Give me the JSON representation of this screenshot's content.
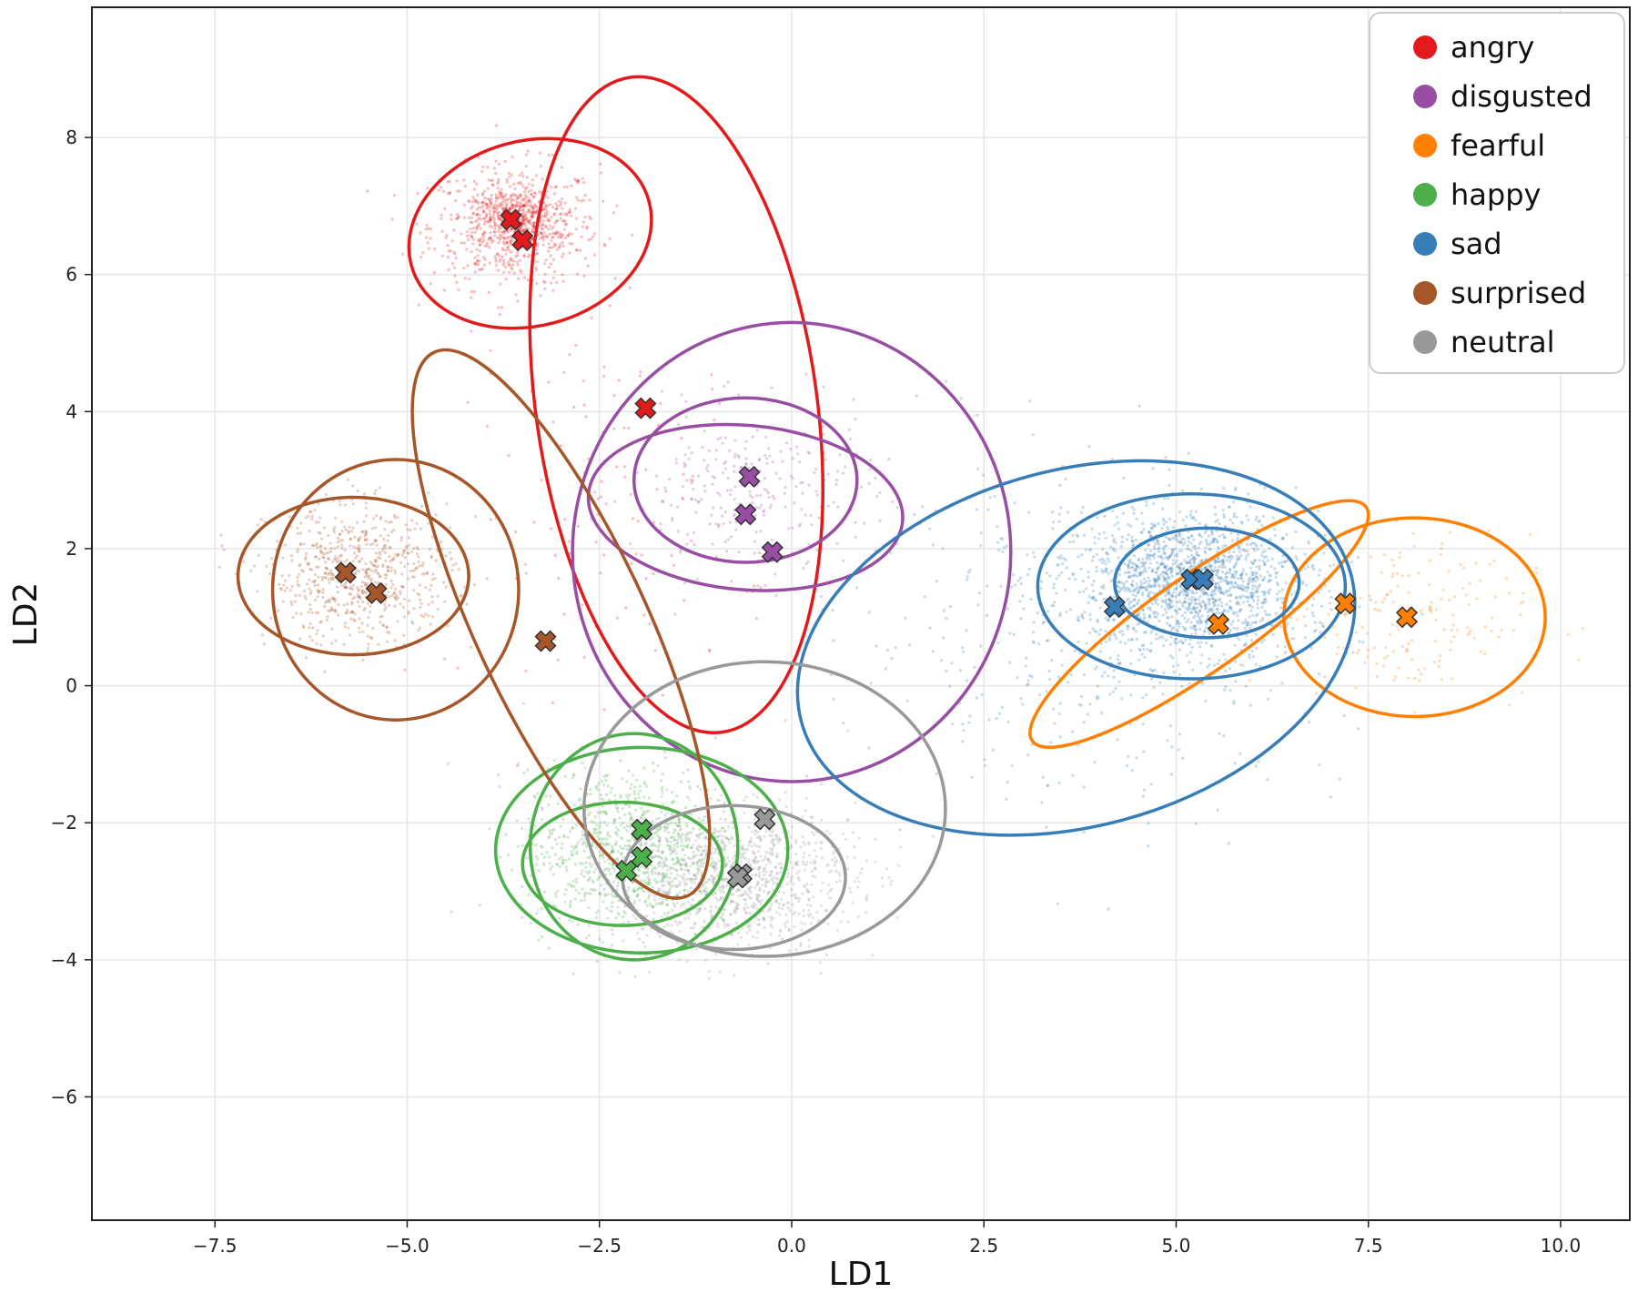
{
  "chart_data": {
    "type": "scatter",
    "title": "",
    "xlabel": "LD1",
    "ylabel": "LD2",
    "xlim": [
      -9.1,
      10.9
    ],
    "ylim": [
      -7.8,
      9.9
    ],
    "grid": true,
    "legend_position": "top-right",
    "x_ticks": [
      -7.5,
      -5.0,
      -2.5,
      0.0,
      2.5,
      5.0,
      7.5,
      10.0
    ],
    "x_tick_labels": [
      "−7.5",
      "−5.0",
      "−2.5",
      "0.0",
      "2.5",
      "5.0",
      "7.5",
      "10.0"
    ],
    "y_ticks": [
      -6,
      -4,
      -2,
      0,
      2,
      4,
      6,
      8
    ],
    "y_tick_labels": [
      "−6",
      "−4",
      "−2",
      "0",
      "2",
      "4",
      "6",
      "8"
    ],
    "series": [
      {
        "name": "angry",
        "color": "#e31a1c",
        "centroids": [
          [
            -3.65,
            6.8
          ],
          [
            -3.5,
            6.5
          ],
          [
            -1.9,
            4.05
          ]
        ],
        "ellipses": [
          {
            "cx": -3.4,
            "cy": 6.6,
            "rx": 1.6,
            "ry": 1.35,
            "angle": 15
          },
          {
            "cx": -1.5,
            "cy": 4.1,
            "rx": 4.3,
            "ry": 2.05,
            "angle": -82
          }
        ],
        "clusters": [
          {
            "cx": -3.6,
            "cy": 6.7,
            "sx": 0.55,
            "sy": 0.45,
            "n": 650
          },
          {
            "cx": -3.6,
            "cy": 6.8,
            "sx": 0.25,
            "sy": 0.2,
            "n": 350
          },
          {
            "cx": -2.2,
            "cy": 2.5,
            "sx": 1.0,
            "sy": 1.3,
            "n": 120
          }
        ]
      },
      {
        "name": "disgusted",
        "color": "#984ea3",
        "centroids": [
          [
            -0.55,
            3.05
          ],
          [
            -0.6,
            2.5
          ],
          [
            -0.25,
            1.95
          ]
        ],
        "ellipses": [
          {
            "cx": -0.6,
            "cy": 3.0,
            "rx": 1.45,
            "ry": 1.2,
            "angle": 0
          },
          {
            "cx": -0.6,
            "cy": 2.6,
            "rx": 2.05,
            "ry": 1.2,
            "angle": -5
          },
          {
            "cx": 0.0,
            "cy": 1.95,
            "rx": 2.85,
            "ry": 3.35,
            "angle": 0
          }
        ],
        "clusters": [
          {
            "cx": -0.5,
            "cy": 2.8,
            "sx": 0.8,
            "sy": 0.6,
            "n": 280
          }
        ]
      },
      {
        "name": "fearful",
        "color": "#ff7f00",
        "centroids": [
          [
            7.2,
            1.2
          ],
          [
            8.0,
            1.0
          ],
          [
            5.55,
            0.9
          ]
        ],
        "ellipses": [
          {
            "cx": 8.1,
            "cy": 1.0,
            "rx": 1.7,
            "ry": 1.45,
            "angle": 0
          },
          {
            "cx": 5.3,
            "cy": 0.9,
            "rx": 2.65,
            "ry": 0.7,
            "angle": 35
          }
        ],
        "clusters": [
          {
            "cx": 8.0,
            "cy": 1.0,
            "sx": 0.8,
            "sy": 0.6,
            "n": 180
          }
        ]
      },
      {
        "name": "happy",
        "color": "#4daf4a",
        "centroids": [
          [
            -1.95,
            -2.1
          ],
          [
            -1.95,
            -2.5
          ],
          [
            -2.15,
            -2.7
          ]
        ],
        "ellipses": [
          {
            "cx": -2.2,
            "cy": -2.6,
            "rx": 1.3,
            "ry": 0.9,
            "angle": 0
          },
          {
            "cx": -2.05,
            "cy": -2.35,
            "rx": 1.35,
            "ry": 1.65,
            "angle": 0
          },
          {
            "cx": -1.95,
            "cy": -2.4,
            "rx": 1.9,
            "ry": 1.5,
            "angle": 0
          }
        ],
        "clusters": [
          {
            "cx": -2.1,
            "cy": -2.4,
            "sx": 0.7,
            "sy": 0.6,
            "n": 900
          }
        ]
      },
      {
        "name": "sad",
        "color": "#377eb8",
        "centroids": [
          [
            5.2,
            1.55
          ],
          [
            5.35,
            1.55
          ],
          [
            4.2,
            1.15
          ]
        ],
        "ellipses": [
          {
            "cx": 5.4,
            "cy": 1.5,
            "rx": 1.2,
            "ry": 0.8,
            "angle": 0
          },
          {
            "cx": 5.2,
            "cy": 1.45,
            "rx": 2.0,
            "ry": 1.35,
            "angle": 0
          },
          {
            "cx": 3.7,
            "cy": 0.55,
            "rx": 3.7,
            "ry": 2.6,
            "angle": 15
          }
        ],
        "clusters": [
          {
            "cx": 5.2,
            "cy": 1.5,
            "sx": 0.7,
            "sy": 0.5,
            "n": 1500
          },
          {
            "cx": 4.0,
            "cy": 0.8,
            "sx": 1.6,
            "sy": 1.2,
            "n": 500
          }
        ]
      },
      {
        "name": "surprised",
        "color": "#a65628",
        "centroids": [
          [
            -5.8,
            1.65
          ],
          [
            -5.4,
            1.35
          ],
          [
            -3.2,
            0.65
          ]
        ],
        "ellipses": [
          {
            "cx": -5.7,
            "cy": 1.6,
            "rx": 1.5,
            "ry": 1.15,
            "angle": 0
          },
          {
            "cx": -5.15,
            "cy": 1.4,
            "rx": 1.6,
            "ry": 1.9,
            "angle": 0
          },
          {
            "cx": -3.0,
            "cy": 0.9,
            "rx": 3.9,
            "ry": 1.25,
            "angle": -65
          }
        ],
        "clusters": [
          {
            "cx": -5.6,
            "cy": 1.6,
            "sx": 0.6,
            "sy": 0.5,
            "n": 700
          }
        ]
      },
      {
        "name": "neutral",
        "color": "#999999",
        "centroids": [
          [
            -0.65,
            -2.75
          ],
          [
            -0.7,
            -2.8
          ],
          [
            -0.35,
            -1.95
          ]
        ],
        "ellipses": [
          {
            "cx": -0.75,
            "cy": -2.8,
            "rx": 1.45,
            "ry": 1.05,
            "angle": 0
          },
          {
            "cx": -0.35,
            "cy": -1.8,
            "rx": 2.35,
            "ry": 2.15,
            "angle": 0
          }
        ],
        "clusters": [
          {
            "cx": -0.8,
            "cy": -2.8,
            "sx": 0.8,
            "sy": 0.5,
            "n": 1100
          }
        ]
      }
    ]
  }
}
